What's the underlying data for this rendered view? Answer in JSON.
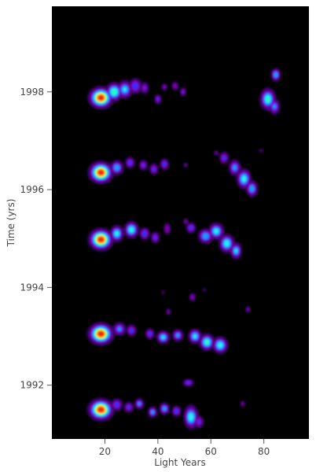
{
  "chart_data": {
    "type": "heatmap",
    "xlabel": "Light Years",
    "ylabel": "Time (yrs)",
    "xlim": [
      0,
      97
    ],
    "ylim": [
      1999.75,
      1990.9
    ],
    "x_ticks": [
      20,
      40,
      60,
      80
    ],
    "x_tick_labels": [
      "20",
      "40",
      "60",
      "80"
    ],
    "y_ticks": [
      1992,
      1994,
      1996,
      1998
    ],
    "y_tick_labels": [
      "1992",
      "1994",
      "1996",
      "1998"
    ],
    "background_color": "#000000",
    "colormap": [
      "#3a006a",
      "#7a00a8",
      "#3c28ff",
      "#1e9bff",
      "#26f0ff",
      "#27ff9c",
      "#f4ff2c",
      "#ff8c00",
      "#ff1e00"
    ],
    "epochs": [
      {
        "time": 1991.5,
        "blobs": [
          {
            "x": 18.5,
            "y": 1991.5,
            "peak": 1.0,
            "sx": 5.2,
            "sy": 0.24
          },
          {
            "x": 24.5,
            "y": 1991.6,
            "peak": 0.35,
            "sx": 2.8,
            "sy": 0.16
          },
          {
            "x": 29.0,
            "y": 1991.55,
            "peak": 0.32,
            "sx": 2.4,
            "sy": 0.14
          },
          {
            "x": 33.0,
            "y": 1991.62,
            "peak": 0.4,
            "sx": 2.2,
            "sy": 0.14
          },
          {
            "x": 38.0,
            "y": 1991.45,
            "peak": 0.42,
            "sx": 2.2,
            "sy": 0.14
          },
          {
            "x": 42.5,
            "y": 1991.52,
            "peak": 0.44,
            "sx": 2.4,
            "sy": 0.15
          },
          {
            "x": 47.0,
            "y": 1991.47,
            "peak": 0.38,
            "sx": 2.2,
            "sy": 0.14
          },
          {
            "x": 52.5,
            "y": 1991.35,
            "peak": 0.58,
            "sx": 3.2,
            "sy": 0.28
          },
          {
            "x": 55.5,
            "y": 1991.25,
            "peak": 0.3,
            "sx": 2.3,
            "sy": 0.17
          },
          {
            "x": 72.0,
            "y": 1991.62,
            "peak": 0.2,
            "sx": 1.3,
            "sy": 0.09
          },
          {
            "x": 51.5,
            "y": 1992.05,
            "peak": 0.34,
            "sx": 2.6,
            "sy": 0.1
          }
        ]
      },
      {
        "time": 1993.1,
        "blobs": [
          {
            "x": 18.5,
            "y": 1993.05,
            "peak": 1.0,
            "sx": 5.2,
            "sy": 0.24
          },
          {
            "x": 25.5,
            "y": 1993.15,
            "peak": 0.4,
            "sx": 3.0,
            "sy": 0.17
          },
          {
            "x": 30.0,
            "y": 1993.12,
            "peak": 0.35,
            "sx": 2.4,
            "sy": 0.15
          },
          {
            "x": 37.0,
            "y": 1993.05,
            "peak": 0.35,
            "sx": 2.2,
            "sy": 0.14
          },
          {
            "x": 42.0,
            "y": 1992.98,
            "peak": 0.5,
            "sx": 3.0,
            "sy": 0.16
          },
          {
            "x": 47.5,
            "y": 1993.02,
            "peak": 0.42,
            "sx": 2.6,
            "sy": 0.15
          },
          {
            "x": 54.0,
            "y": 1993.0,
            "peak": 0.52,
            "sx": 3.0,
            "sy": 0.18
          },
          {
            "x": 58.5,
            "y": 1992.88,
            "peak": 0.6,
            "sx": 3.4,
            "sy": 0.2
          },
          {
            "x": 63.5,
            "y": 1992.82,
            "peak": 0.58,
            "sx": 3.4,
            "sy": 0.2
          },
          {
            "x": 44.0,
            "y": 1993.5,
            "peak": 0.2,
            "sx": 1.4,
            "sy": 0.1
          },
          {
            "x": 74.0,
            "y": 1993.55,
            "peak": 0.2,
            "sx": 1.4,
            "sy": 0.1
          },
          {
            "x": 53.0,
            "y": 1993.8,
            "peak": 0.26,
            "sx": 1.6,
            "sy": 0.12
          },
          {
            "x": 42.0,
            "y": 1993.9,
            "peak": 0.16,
            "sx": 1.0,
            "sy": 0.07
          },
          {
            "x": 57.5,
            "y": 1993.95,
            "peak": 0.14,
            "sx": 1.2,
            "sy": 0.06
          }
        ]
      },
      {
        "time": 1995.0,
        "blobs": [
          {
            "x": 18.5,
            "y": 1994.98,
            "peak": 1.0,
            "sx": 5.0,
            "sy": 0.24
          },
          {
            "x": 24.5,
            "y": 1995.1,
            "peak": 0.55,
            "sx": 3.0,
            "sy": 0.2
          },
          {
            "x": 30.0,
            "y": 1995.18,
            "peak": 0.58,
            "sx": 3.2,
            "sy": 0.2
          },
          {
            "x": 35.0,
            "y": 1995.1,
            "peak": 0.38,
            "sx": 2.4,
            "sy": 0.16
          },
          {
            "x": 39.0,
            "y": 1995.02,
            "peak": 0.32,
            "sx": 2.2,
            "sy": 0.15
          },
          {
            "x": 43.5,
            "y": 1995.2,
            "peak": 0.26,
            "sx": 1.8,
            "sy": 0.16
          },
          {
            "x": 52.5,
            "y": 1995.22,
            "peak": 0.35,
            "sx": 2.4,
            "sy": 0.14
          },
          {
            "x": 58.0,
            "y": 1995.05,
            "peak": 0.48,
            "sx": 3.4,
            "sy": 0.18
          },
          {
            "x": 62.0,
            "y": 1995.15,
            "peak": 0.55,
            "sx": 3.4,
            "sy": 0.2
          },
          {
            "x": 66.0,
            "y": 1994.9,
            "peak": 0.58,
            "sx": 3.4,
            "sy": 0.22
          },
          {
            "x": 69.5,
            "y": 1994.75,
            "peak": 0.5,
            "sx": 2.6,
            "sy": 0.2
          },
          {
            "x": 50.5,
            "y": 1995.35,
            "peak": 0.2,
            "sx": 1.4,
            "sy": 0.1
          }
        ]
      },
      {
        "time": 1996.35,
        "blobs": [
          {
            "x": 18.5,
            "y": 1996.35,
            "peak": 1.0,
            "sx": 5.0,
            "sy": 0.24
          },
          {
            "x": 24.5,
            "y": 1996.45,
            "peak": 0.48,
            "sx": 3.0,
            "sy": 0.18
          },
          {
            "x": 29.5,
            "y": 1996.55,
            "peak": 0.34,
            "sx": 2.4,
            "sy": 0.15
          },
          {
            "x": 34.5,
            "y": 1996.5,
            "peak": 0.3,
            "sx": 2.2,
            "sy": 0.14
          },
          {
            "x": 38.5,
            "y": 1996.42,
            "peak": 0.32,
            "sx": 2.2,
            "sy": 0.15
          },
          {
            "x": 42.5,
            "y": 1996.52,
            "peak": 0.34,
            "sx": 2.2,
            "sy": 0.15
          },
          {
            "x": 50.5,
            "y": 1996.5,
            "peak": 0.2,
            "sx": 1.1,
            "sy": 0.08
          },
          {
            "x": 65.0,
            "y": 1996.65,
            "peak": 0.32,
            "sx": 2.4,
            "sy": 0.16
          },
          {
            "x": 69.0,
            "y": 1996.45,
            "peak": 0.42,
            "sx": 2.8,
            "sy": 0.2
          },
          {
            "x": 72.5,
            "y": 1996.22,
            "peak": 0.56,
            "sx": 3.2,
            "sy": 0.24
          },
          {
            "x": 75.5,
            "y": 1996.02,
            "peak": 0.48,
            "sx": 2.6,
            "sy": 0.2
          },
          {
            "x": 62.0,
            "y": 1996.75,
            "peak": 0.2,
            "sx": 1.3,
            "sy": 0.08
          },
          {
            "x": 79.0,
            "y": 1996.8,
            "peak": 0.14,
            "sx": 1.6,
            "sy": 0.06
          }
        ]
      },
      {
        "time": 1997.9,
        "blobs": [
          {
            "x": 18.5,
            "y": 1997.88,
            "peak": 1.0,
            "sx": 5.0,
            "sy": 0.24
          },
          {
            "x": 23.5,
            "y": 1998.0,
            "peak": 0.65,
            "sx": 3.6,
            "sy": 0.22
          },
          {
            "x": 27.5,
            "y": 1998.05,
            "peak": 0.5,
            "sx": 3.4,
            "sy": 0.22
          },
          {
            "x": 31.5,
            "y": 1998.12,
            "peak": 0.38,
            "sx": 3.0,
            "sy": 0.2
          },
          {
            "x": 35.0,
            "y": 1998.08,
            "peak": 0.28,
            "sx": 2.2,
            "sy": 0.16
          },
          {
            "x": 40.0,
            "y": 1997.85,
            "peak": 0.3,
            "sx": 1.8,
            "sy": 0.13
          },
          {
            "x": 42.5,
            "y": 1998.1,
            "peak": 0.24,
            "sx": 1.6,
            "sy": 0.1
          },
          {
            "x": 46.5,
            "y": 1998.12,
            "peak": 0.26,
            "sx": 1.8,
            "sy": 0.12
          },
          {
            "x": 49.5,
            "y": 1998.0,
            "peak": 0.28,
            "sx": 1.6,
            "sy": 0.12
          },
          {
            "x": 81.5,
            "y": 1997.85,
            "peak": 0.6,
            "sx": 3.4,
            "sy": 0.26
          },
          {
            "x": 84.0,
            "y": 1997.7,
            "peak": 0.4,
            "sx": 2.6,
            "sy": 0.2
          },
          {
            "x": 84.5,
            "y": 1998.35,
            "peak": 0.48,
            "sx": 2.2,
            "sy": 0.16
          }
        ]
      }
    ]
  }
}
